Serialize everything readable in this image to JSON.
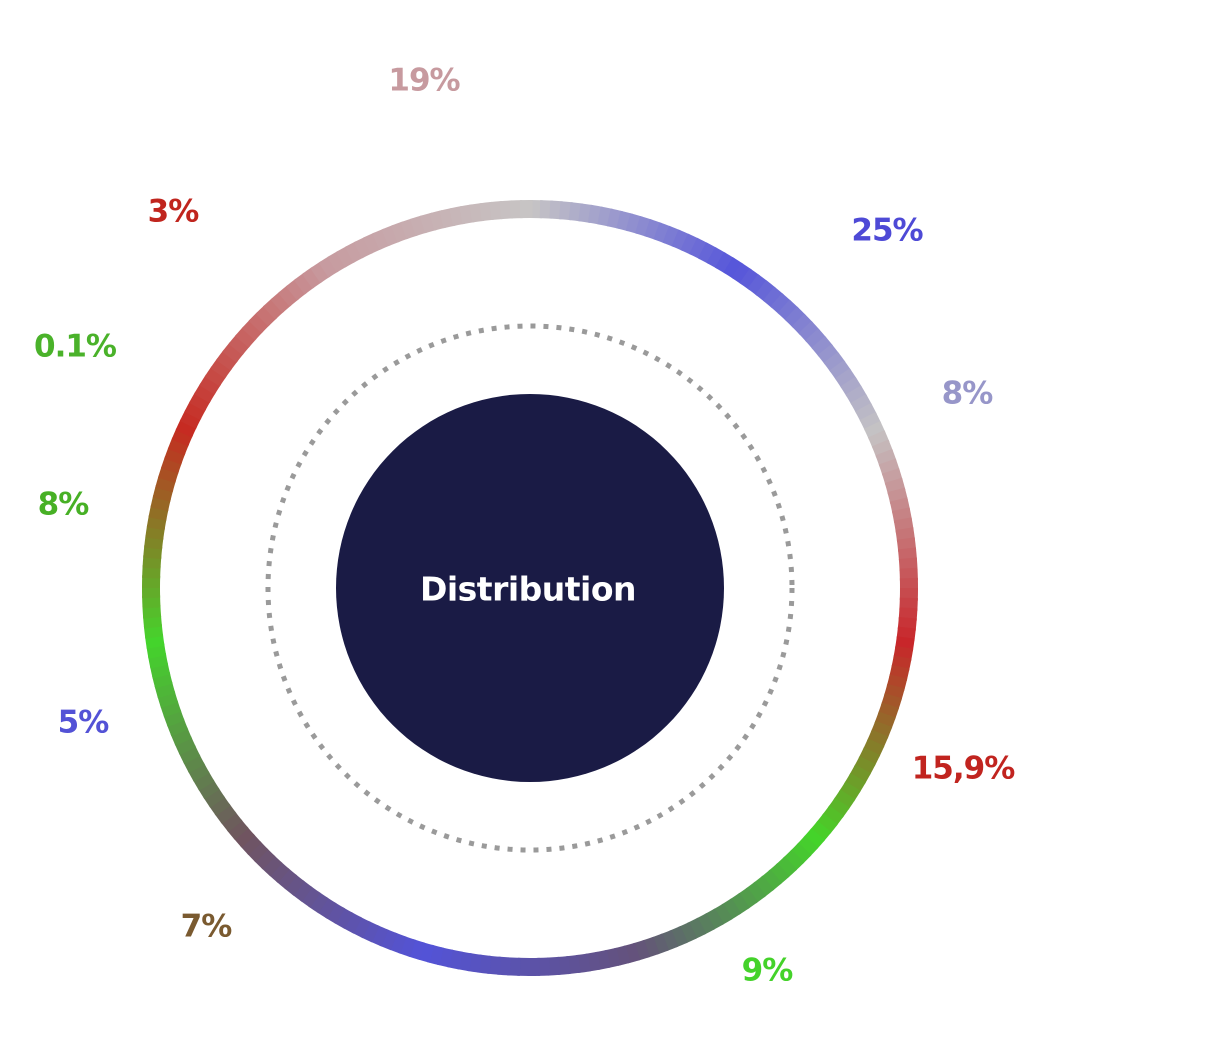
{
  "chart_data": {
    "type": "pie",
    "title": "Distribution",
    "grid": false,
    "legend": "none",
    "slices": [
      {
        "label": "25%",
        "value": 25,
        "color": "#4e4ad6"
      },
      {
        "label": "8%",
        "value": 8,
        "color": "#9796c9"
      },
      {
        "label": "15,9%",
        "value": 15.9,
        "color": "#c1241f"
      },
      {
        "label": "9%",
        "value": 9,
        "color": "#44d22a"
      },
      {
        "label": "7%",
        "value": 7,
        "color": "#7a5a30"
      },
      {
        "label": "5%",
        "value": 5,
        "color": "#5352d6"
      },
      {
        "label": "8%",
        "value": 8,
        "color": "#47b025"
      },
      {
        "label": "0.1%",
        "value": 0.1,
        "color": "#4ab22a"
      },
      {
        "label": "3%",
        "value": 3,
        "color": "#c0251e"
      },
      {
        "label": "19%",
        "value": 19,
        "color": "#c79a9f"
      }
    ],
    "ring_gradient": [
      "#c7c5c5",
      "#5555da",
      "#c5c3c4",
      "#c8262a",
      "#44d429",
      "#64527a",
      "#5353d8",
      "#70545f",
      "#44d42c",
      "#c62a21",
      "#c79a9f",
      "#c7c5c5"
    ],
    "center_color": "#1a1b45",
    "dotted_ring_color": "#9a9a9a"
  }
}
